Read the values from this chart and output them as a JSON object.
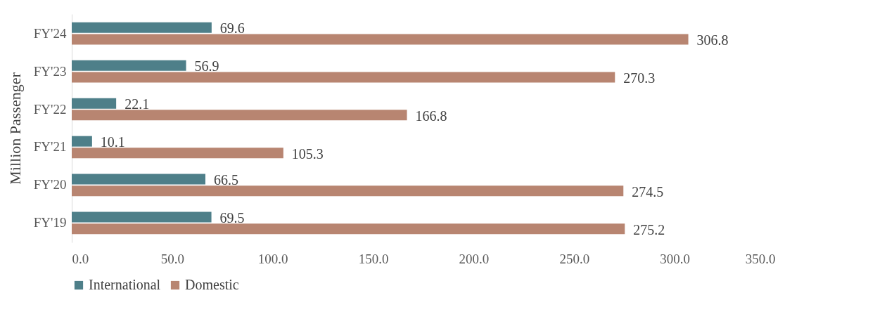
{
  "chart_data": {
    "type": "bar",
    "orientation": "horizontal",
    "ylabel": "Million Passenger",
    "categories": [
      "FY'24",
      "FY'23",
      "FY'22",
      "FY'21",
      "FY'20",
      "FY'19"
    ],
    "series": [
      {
        "name": "International",
        "color": "#4e7f89",
        "values": [
          69.6,
          56.9,
          22.1,
          10.1,
          66.5,
          69.5
        ]
      },
      {
        "name": "Domestic",
        "color": "#b88571",
        "values": [
          306.8,
          270.3,
          166.8,
          105.3,
          274.5,
          275.2
        ]
      }
    ],
    "xlim": [
      0,
      350
    ],
    "xticks": [
      {
        "value": 0,
        "label": "0.0"
      },
      {
        "value": 50,
        "label": "50.0"
      },
      {
        "value": 100,
        "label": "100.0"
      },
      {
        "value": 150,
        "label": "150.0"
      },
      {
        "value": 200,
        "label": "200.0"
      },
      {
        "value": 250,
        "label": "250.0"
      },
      {
        "value": 300,
        "label": "300.0"
      },
      {
        "value": 350,
        "label": "350.0"
      }
    ],
    "data_labels": true,
    "legend": "bottom",
    "grid": false
  }
}
